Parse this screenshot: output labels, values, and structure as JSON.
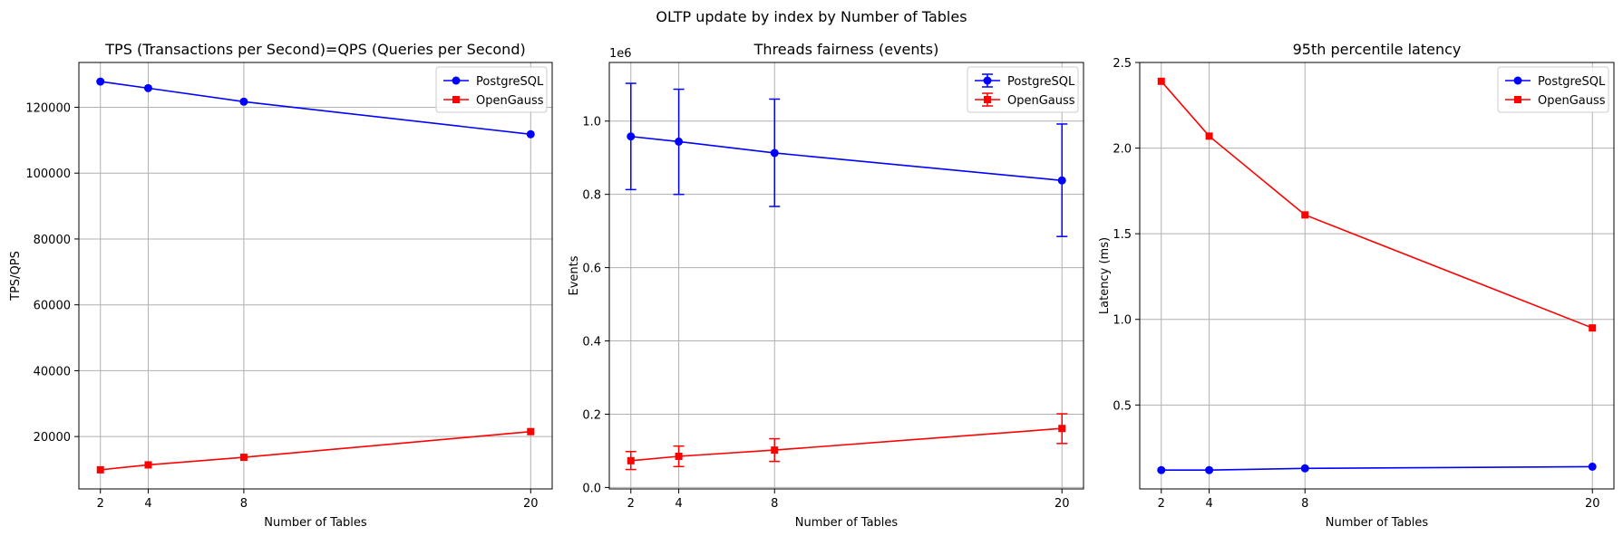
{
  "figure_title": "OLTP update by index by Number of Tables",
  "colors": {
    "postgres": "#0000ff",
    "opengauss": "#ff0000",
    "grid": "#b0b0b0"
  },
  "chart_data": [
    {
      "type": "line",
      "title": "TPS (Transactions per Second)=QPS (Queries per Second)",
      "xlabel": "Number of Tables",
      "ylabel": "TPS/QPS",
      "x": [
        2,
        4,
        8,
        20
      ],
      "xticks": [
        "2",
        "4",
        "8",
        "20"
      ],
      "xlim": [
        1.1,
        20.9
      ],
      "yticks": [
        20000,
        40000,
        60000,
        80000,
        100000,
        120000
      ],
      "ytick_labels": [
        "20000",
        "40000",
        "60000",
        "80000",
        "100000",
        "120000"
      ],
      "ylim": [
        4100,
        133600
      ],
      "offset_text": "",
      "grid": true,
      "legend_position": "upper right",
      "series": [
        {
          "name": "PostgreSQL",
          "color": "#0000ff",
          "marker": "circle",
          "values": [
            127800,
            125800,
            121700,
            111800
          ]
        },
        {
          "name": "OpenGauss",
          "color": "#ff0000",
          "marker": "square",
          "values": [
            9900,
            11400,
            13700,
            21500
          ]
        }
      ]
    },
    {
      "type": "line",
      "title": "Threads fairness (events)",
      "xlabel": "Number of Tables",
      "ylabel": "Events",
      "x": [
        2,
        4,
        8,
        20
      ],
      "xticks": [
        "2",
        "4",
        "8",
        "20"
      ],
      "xlim": [
        1.1,
        20.9
      ],
      "yticks": [
        0.0,
        0.2,
        0.4,
        0.6,
        0.8,
        1.0
      ],
      "ytick_labels": [
        "0.0",
        "0.2",
        "0.4",
        "0.6",
        "0.8",
        "1.0"
      ],
      "ylim": [
        -0.004,
        1.16
      ],
      "offset_text": "1e6",
      "grid": true,
      "legend_position": "upper right",
      "series": [
        {
          "name": "PostgreSQL",
          "color": "#0000ff",
          "marker": "circle",
          "values": [
            0.958,
            0.944,
            0.913,
            0.838
          ],
          "err_low": [
            0.813,
            0.8,
            0.767,
            0.685
          ],
          "err_high": [
            1.103,
            1.087,
            1.06,
            0.992
          ]
        },
        {
          "name": "OpenGauss",
          "color": "#ff0000",
          "marker": "square",
          "values": [
            0.073,
            0.085,
            0.102,
            0.161
          ],
          "err_low": [
            0.049,
            0.057,
            0.071,
            0.12
          ],
          "err_high": [
            0.098,
            0.113,
            0.133,
            0.201
          ]
        }
      ]
    },
    {
      "type": "line",
      "title": "95th percentile latency",
      "xlabel": "Number of Tables",
      "ylabel": "Latency (ms)",
      "x": [
        2,
        4,
        8,
        20
      ],
      "xticks": [
        "2",
        "4",
        "8",
        "20"
      ],
      "xlim": [
        1.1,
        20.9
      ],
      "yticks": [
        0.5,
        1.0,
        1.5,
        2.0,
        2.5
      ],
      "ytick_labels": [
        "0.5",
        "1.0",
        "1.5",
        "2.0",
        "2.5"
      ],
      "ylim": [
        0.01,
        2.5
      ],
      "offset_text": "",
      "grid": true,
      "legend_position": "upper right",
      "series": [
        {
          "name": "PostgreSQL",
          "color": "#0000ff",
          "marker": "circle",
          "values": [
            0.12,
            0.12,
            0.13,
            0.14
          ]
        },
        {
          "name": "OpenGauss",
          "color": "#ff0000",
          "marker": "square",
          "values": [
            2.39,
            2.07,
            1.61,
            0.95
          ]
        }
      ]
    }
  ]
}
